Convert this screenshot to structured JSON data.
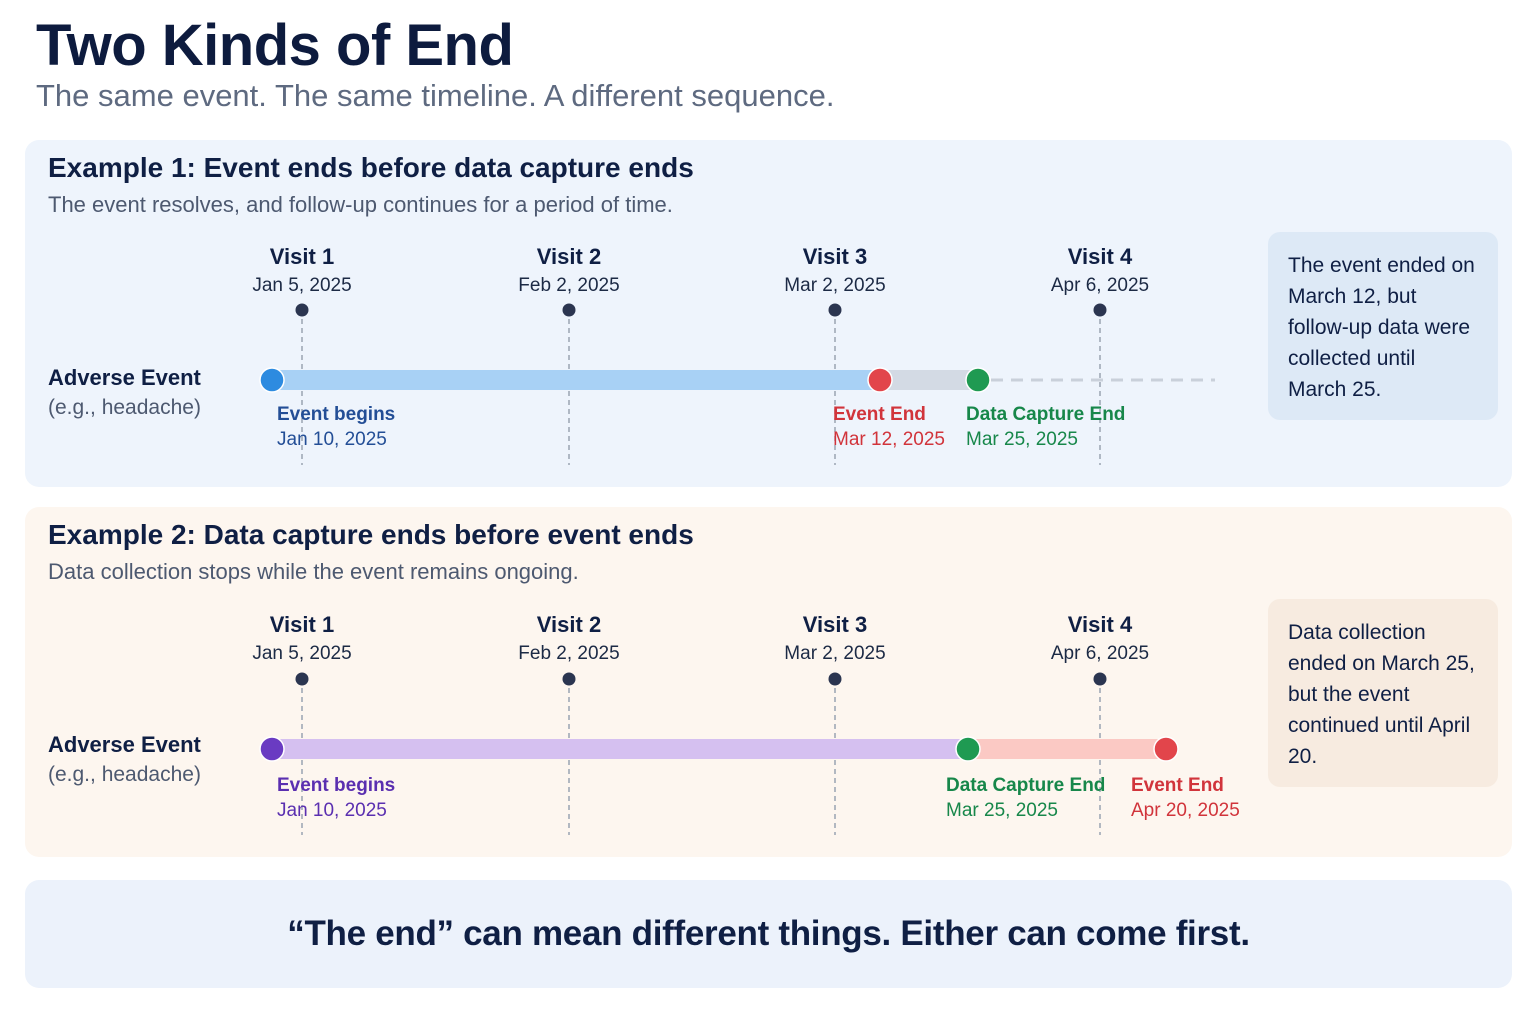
{
  "title": "Two Kinds of End",
  "subtitle": "The same event. The same timeline. A different sequence.",
  "colors": {
    "blue": "#2d8be0",
    "purple": "#6a3bc2",
    "red": "#e2454b",
    "green": "#1f9a52",
    "visit_marker": "#2b3550"
  },
  "examples": [
    {
      "title": "Example 1: Event ends before data capture ends",
      "subtitle": "The event resolves, and follow-up continues for a period of time.",
      "row_label": "Adverse Event",
      "row_sublabel": "(e.g., headache)",
      "visits": [
        {
          "label": "Visit 1",
          "date": "Jan 5, 2025"
        },
        {
          "label": "Visit 2",
          "date": "Feb 2, 2025"
        },
        {
          "label": "Visit 3",
          "date": "Mar 2, 2025"
        },
        {
          "label": "Visit 4",
          "date": "Apr 6, 2025"
        }
      ],
      "milestones": [
        {
          "name": "Event begins",
          "date": "Jan 10, 2025"
        },
        {
          "name": "Event End",
          "date": "Mar 12, 2025"
        },
        {
          "name": "Data Capture End",
          "date": "Mar 25, 2025"
        }
      ],
      "note": "The event ended on March 12, but follow-up data were collected until March 25."
    },
    {
      "title": "Example 2: Data capture ends before event ends",
      "subtitle": "Data collection stops while the event remains ongoing.",
      "row_label": "Adverse Event",
      "row_sublabel": "(e.g., headache)",
      "visits": [
        {
          "label": "Visit 1",
          "date": "Jan 5, 2025"
        },
        {
          "label": "Visit 2",
          "date": "Feb 2, 2025"
        },
        {
          "label": "Visit 3",
          "date": "Mar 2, 2025"
        },
        {
          "label": "Visit 4",
          "date": "Apr 6, 2025"
        }
      ],
      "milestones": [
        {
          "name": "Event begins",
          "date": "Jan 10, 2025"
        },
        {
          "name": "Data Capture End",
          "date": "Mar 25, 2025"
        },
        {
          "name": "Event End",
          "date": "Apr 20, 2025"
        }
      ],
      "note": "Data collection ended on March 25, but the event continued until April 20."
    }
  ],
  "footer": "“The end” can mean different things. Either can come first."
}
